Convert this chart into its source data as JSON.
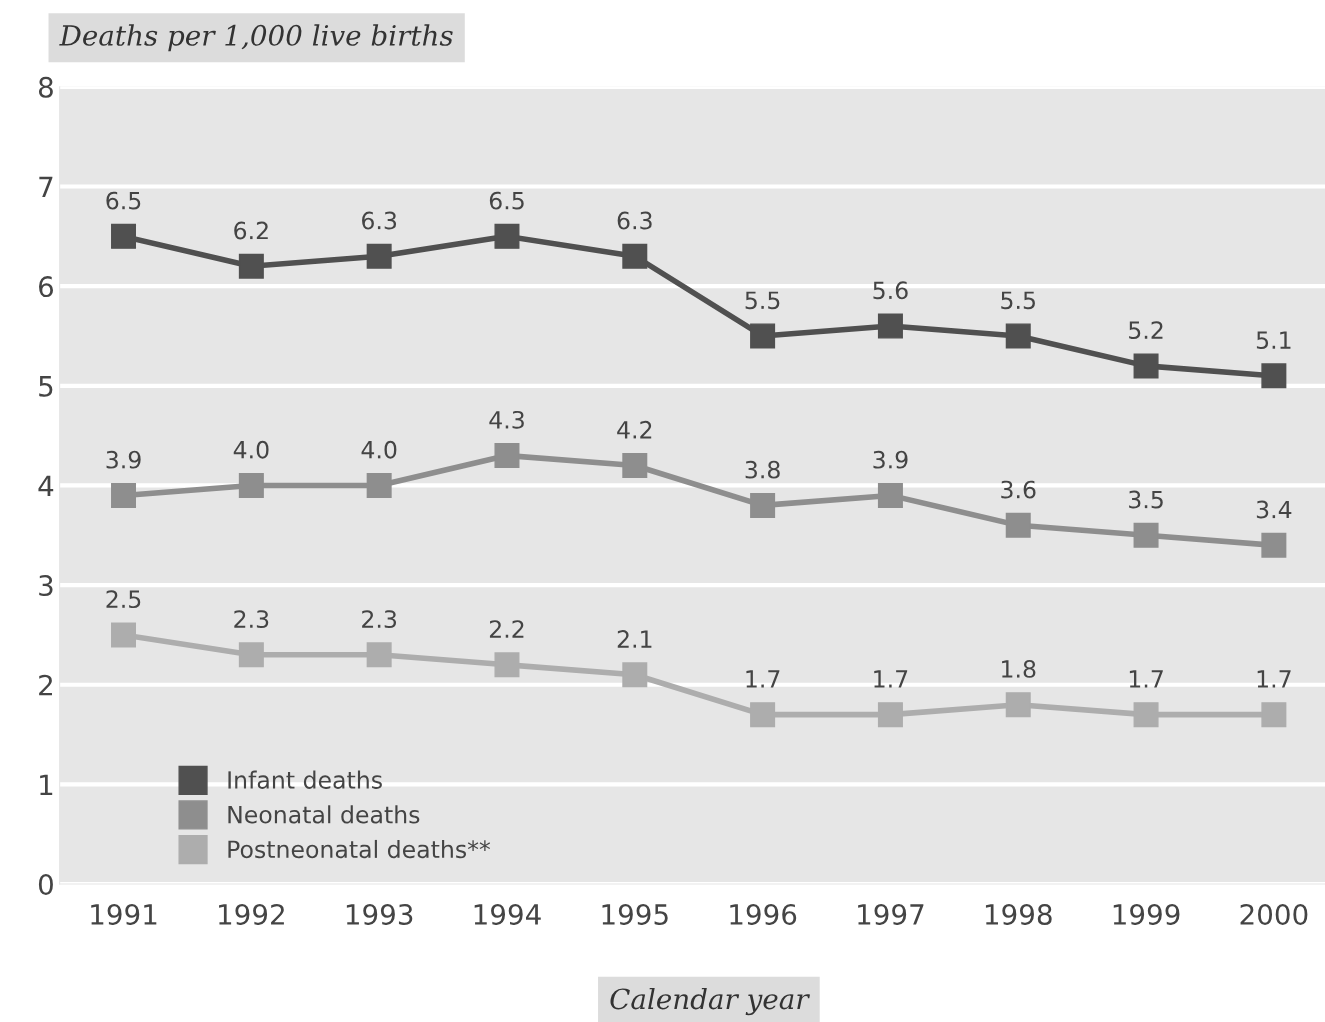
{
  "chart_data": {
    "type": "line",
    "ylabel": "Deaths per 1,000 live births",
    "xlabel": "Calendar year",
    "categories": [
      "1991",
      "1992",
      "1993",
      "1994",
      "1995",
      "1996",
      "1997",
      "1998",
      "1999",
      "2000"
    ],
    "series": [
      {
        "name": "Infant deaths",
        "color": "#505050",
        "values": [
          6.5,
          6.2,
          6.3,
          6.5,
          6.3,
          5.5,
          5.6,
          5.5,
          5.2,
          5.1
        ],
        "value_labels": [
          "6.5",
          "6.2",
          "6.3",
          "6.5",
          "6.3",
          "5.5",
          "5.6",
          "5.5",
          "5.2",
          "5.1"
        ]
      },
      {
        "name": "Neonatal deaths",
        "color": "#8e8e8e",
        "values": [
          3.9,
          4.0,
          4.0,
          4.3,
          4.2,
          3.8,
          3.9,
          3.6,
          3.5,
          3.4
        ],
        "value_labels": [
          "3.9",
          "4.0",
          "4.0",
          "4.3",
          "4.2",
          "3.8",
          "3.9",
          "3.6",
          "3.5",
          "3.4"
        ]
      },
      {
        "name": "Postneonatal deaths**",
        "color": "#adadad",
        "values": [
          2.5,
          2.3,
          2.3,
          2.2,
          2.1,
          1.7,
          1.7,
          1.8,
          1.7,
          1.7
        ],
        "value_labels": [
          "2.5",
          "2.3",
          "2.3",
          "2.2",
          "2.1",
          "1.7",
          "1.7",
          "1.8",
          "1.7",
          "1.7"
        ]
      }
    ],
    "ylim": [
      0,
      8
    ],
    "yticks": [
      0,
      1,
      2,
      3,
      4,
      5,
      6,
      7,
      8
    ],
    "grid": "y",
    "legend": "bottom left",
    "marker": "square",
    "line_style": "solid"
  }
}
